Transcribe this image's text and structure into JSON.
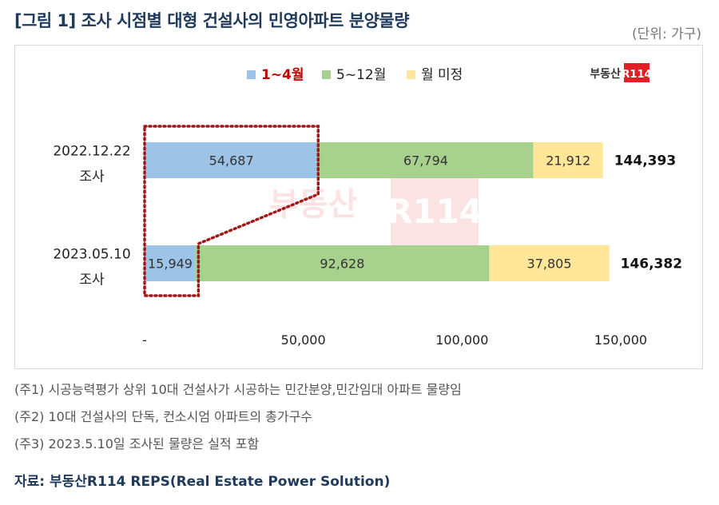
{
  "header": {
    "title": "[그림 1] 조사 시점별 대형 건설사의 민영아파트 분양물량",
    "unit": "(단위: 가구)"
  },
  "logo": {
    "text": "부동산",
    "badge": "R114",
    "badge_color": "#e31e24"
  },
  "chart_data": {
    "type": "bar",
    "orientation": "horizontal",
    "stacked": true,
    "categories": [
      "2022.12.22 조사",
      "2023.05.10 조사"
    ],
    "category_lines": [
      [
        "2022.12.22",
        "조사"
      ],
      [
        "2023.05.10",
        "조사"
      ]
    ],
    "series": [
      {
        "name": "1~4월",
        "values": [
          54687,
          15949
        ],
        "color": "#9dc3e6",
        "legend_color": "#c00000"
      },
      {
        "name": "5~12월",
        "values": [
          67794,
          92628
        ],
        "color": "#a9d18e",
        "legend_color": "#222222"
      },
      {
        "name": "월 미정",
        "values": [
          21912,
          37805
        ],
        "color": "#ffe699",
        "legend_color": "#222222"
      }
    ],
    "totals": [
      "144,393",
      "146,382"
    ],
    "value_labels": [
      [
        "54,687",
        "67,794",
        "21,912"
      ],
      [
        "15,949",
        "92,628",
        "37,805"
      ]
    ],
    "xlim": [
      0,
      150000
    ],
    "xticks": [
      0,
      50000,
      100000,
      150000
    ],
    "xtick_labels": [
      "-",
      "50,000",
      "100,000",
      "150,000"
    ],
    "grid": false,
    "legend_position": "top-center"
  },
  "notes": [
    "(주1) 시공능력평가 상위 10대 건설사가 시공하는 민간분양,민간임대 아파트 물량임",
    "(주2) 10대 건설사의 단독, 컨소시엄 아파트의 총가구수",
    "(주3) 2023.5.10일 조사된 물량은 실적 포함"
  ],
  "source": "자료: 부동산R114 REPS(Real Estate Power Solution)"
}
